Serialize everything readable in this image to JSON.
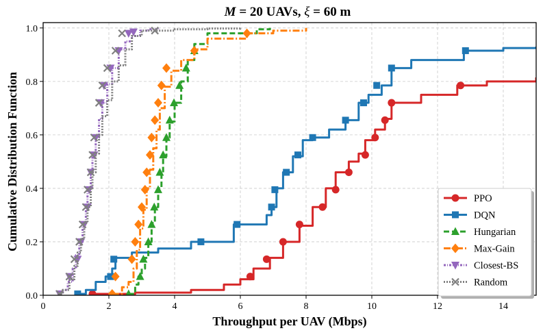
{
  "chart_data": {
    "type": "line",
    "subtype": "empirical-cdf",
    "title_parts": {
      "var_m": "M",
      "mid": " = 20 UAVs, ",
      "var_xi": "ξ",
      "end": " = 60 m"
    },
    "xlabel": "Throughput per UAV (Mbps)",
    "ylabel": "Cumulative Distribution Function",
    "xlim": [
      0,
      15
    ],
    "ylim": [
      0,
      1.02
    ],
    "xticks": [
      0,
      2,
      4,
      6,
      8,
      10,
      12,
      14
    ],
    "yticks": [
      0.0,
      0.2,
      0.4,
      0.6,
      0.8,
      1.0
    ],
    "ytick_labels": [
      "0.0",
      "0.2",
      "0.4",
      "0.6",
      "0.8",
      "1.0"
    ],
    "grid": true,
    "legend_position": "lower-right",
    "series": [
      {
        "name": "PPO",
        "color": "#d62728",
        "dash": "solid",
        "marker": "circle",
        "x": [
          1.5,
          2.8,
          4.5,
          5.5,
          6.0,
          6.4,
          6.9,
          7.3,
          7.8,
          8.2,
          8.6,
          8.9,
          9.3,
          9.6,
          9.8,
          10.1,
          10.4,
          10.6,
          11.5,
          12.6,
          13.5,
          15.0
        ],
        "y": [
          0.005,
          0.01,
          0.02,
          0.04,
          0.06,
          0.1,
          0.14,
          0.2,
          0.26,
          0.33,
          0.4,
          0.46,
          0.5,
          0.53,
          0.58,
          0.62,
          0.66,
          0.72,
          0.75,
          0.785,
          0.8,
          0.815
        ],
        "marker_x": [
          1.5,
          6.3,
          6.8,
          7.3,
          7.8,
          8.5,
          8.9,
          9.3,
          9.8,
          10.1,
          10.4,
          10.6,
          12.7
        ],
        "marker_y": [
          0.005,
          0.07,
          0.135,
          0.2,
          0.265,
          0.33,
          0.395,
          0.46,
          0.525,
          0.59,
          0.655,
          0.72,
          0.785
        ]
      },
      {
        "name": "DQN",
        "color": "#1f77b4",
        "dash": "solid",
        "marker": "square",
        "x": [
          1.05,
          1.3,
          1.6,
          1.9,
          2.1,
          2.2,
          2.7,
          3.5,
          4.5,
          5.8,
          6.8,
          6.95,
          7.1,
          7.3,
          7.6,
          7.9,
          8.2,
          8.7,
          9.2,
          9.6,
          9.9,
          10.3,
          10.6,
          11.2,
          12.8,
          14.0,
          15.0
        ],
        "y": [
          0.005,
          0.02,
          0.05,
          0.07,
          0.1,
          0.14,
          0.16,
          0.175,
          0.2,
          0.265,
          0.3,
          0.33,
          0.4,
          0.46,
          0.52,
          0.58,
          0.59,
          0.62,
          0.655,
          0.72,
          0.75,
          0.785,
          0.85,
          0.88,
          0.915,
          0.925,
          0.93
        ],
        "marker_x": [
          1.05,
          2.05,
          2.15,
          4.8,
          5.9,
          6.95,
          7.05,
          7.4,
          7.75,
          8.2,
          9.2,
          9.75,
          10.15,
          10.6,
          12.85
        ],
        "marker_y": [
          0.005,
          0.07,
          0.135,
          0.2,
          0.265,
          0.33,
          0.395,
          0.46,
          0.525,
          0.59,
          0.655,
          0.72,
          0.785,
          0.85,
          0.915
        ]
      },
      {
        "name": "Hungarian",
        "color": "#2ca02c",
        "dash": "8,4",
        "marker": "triangle",
        "x": [
          2.6,
          2.8,
          2.9,
          3.0,
          3.1,
          3.2,
          3.3,
          3.4,
          3.5,
          3.6,
          3.65,
          3.75,
          3.85,
          4.0,
          4.2,
          4.4,
          4.6,
          5.0,
          6.5,
          6.9
        ],
        "y": [
          0.005,
          0.04,
          0.07,
          0.1,
          0.14,
          0.2,
          0.27,
          0.33,
          0.4,
          0.46,
          0.52,
          0.59,
          0.65,
          0.72,
          0.8,
          0.88,
          0.94,
          0.98,
          0.995,
          1.0
        ],
        "marker_x": [
          2.6,
          2.95,
          3.05,
          3.2,
          3.3,
          3.38,
          3.5,
          3.55,
          3.65,
          3.75,
          3.85,
          3.98,
          4.15,
          4.35,
          4.6
        ],
        "marker_y": [
          0.005,
          0.07,
          0.135,
          0.2,
          0.265,
          0.33,
          0.395,
          0.46,
          0.525,
          0.59,
          0.655,
          0.72,
          0.785,
          0.85,
          0.915
        ]
      },
      {
        "name": "Max-Gain",
        "color": "#ff7f0e",
        "dash": "10,3,2,3",
        "marker": "diamond",
        "x": [
          2.1,
          2.4,
          2.6,
          2.75,
          2.85,
          2.95,
          3.05,
          3.15,
          3.25,
          3.35,
          3.45,
          3.55,
          3.7,
          3.9,
          4.2,
          4.6,
          5.0,
          6.2,
          7.0,
          8.0
        ],
        "y": [
          0.005,
          0.03,
          0.05,
          0.1,
          0.17,
          0.25,
          0.32,
          0.4,
          0.47,
          0.55,
          0.62,
          0.7,
          0.78,
          0.84,
          0.88,
          0.92,
          0.96,
          0.98,
          0.99,
          1.0
        ],
        "marker_x": [
          2.1,
          2.2,
          2.7,
          2.8,
          2.9,
          3.0,
          3.1,
          3.15,
          3.25,
          3.3,
          3.4,
          3.5,
          3.6,
          3.75,
          4.6,
          6.2
        ],
        "marker_y": [
          0.005,
          0.07,
          0.135,
          0.2,
          0.265,
          0.33,
          0.395,
          0.46,
          0.525,
          0.59,
          0.655,
          0.72,
          0.785,
          0.85,
          0.915,
          0.98
        ]
      },
      {
        "name": "Closest-BS",
        "color": "#9467bd",
        "dash": "3,2,1,2",
        "marker": "triangle-down",
        "x": [
          0.45,
          0.6,
          0.75,
          0.9,
          1.0,
          1.1,
          1.2,
          1.3,
          1.35,
          1.45,
          1.5,
          1.6,
          1.7,
          1.8,
          1.95,
          2.1,
          2.3,
          2.5,
          2.7,
          2.95,
          3.2,
          3.5
        ],
        "y": [
          0.005,
          0.02,
          0.05,
          0.1,
          0.15,
          0.2,
          0.27,
          0.33,
          0.4,
          0.46,
          0.53,
          0.59,
          0.66,
          0.72,
          0.79,
          0.85,
          0.92,
          0.95,
          0.97,
          0.99,
          0.995,
          1.0
        ],
        "marker_x": [
          0.5,
          0.8,
          1.05,
          1.15,
          1.25,
          1.35,
          1.4,
          1.45,
          1.55,
          1.6,
          1.75,
          1.85,
          2.05,
          2.3,
          2.6,
          2.75
        ],
        "marker_y": [
          0.005,
          0.07,
          0.135,
          0.2,
          0.265,
          0.33,
          0.395,
          0.46,
          0.525,
          0.59,
          0.72,
          0.785,
          0.85,
          0.915,
          0.98,
          0.985
        ]
      },
      {
        "name": "Random",
        "color": "#7f7f7f",
        "dash": "2,2",
        "marker": "x",
        "x": [
          0.45,
          0.6,
          0.8,
          0.95,
          1.05,
          1.15,
          1.25,
          1.35,
          1.45,
          1.5,
          1.6,
          1.7,
          1.8,
          1.95,
          2.1,
          2.3,
          2.5,
          2.7,
          3.0,
          4.0,
          5.0,
          6.0
        ],
        "y": [
          0.005,
          0.02,
          0.06,
          0.11,
          0.16,
          0.21,
          0.27,
          0.33,
          0.4,
          0.46,
          0.53,
          0.6,
          0.67,
          0.73,
          0.8,
          0.86,
          0.92,
          0.97,
          0.99,
          0.995,
          0.998,
          1.0
        ],
        "marker_x": [
          0.5,
          0.8,
          0.95,
          1.1,
          1.2,
          1.3,
          1.35,
          1.45,
          1.5,
          1.55,
          1.7,
          1.8,
          1.95,
          2.2,
          2.4,
          3.4
        ],
        "marker_y": [
          0.005,
          0.07,
          0.135,
          0.2,
          0.265,
          0.33,
          0.395,
          0.46,
          0.525,
          0.59,
          0.72,
          0.785,
          0.85,
          0.915,
          0.98,
          0.99
        ]
      }
    ]
  }
}
